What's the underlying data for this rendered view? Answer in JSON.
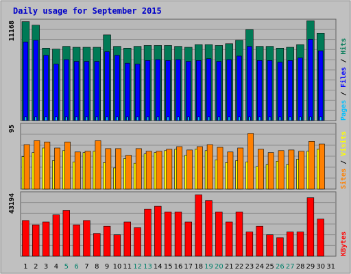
{
  "chart_data": [
    {
      "type": "bar",
      "title": "Daily usage for September 2015",
      "ymax_label": "11168",
      "right_label": [
        "Pages",
        "Files",
        "Hits"
      ],
      "right_label_separators": [
        " / ",
        " / "
      ],
      "categories": [
        "1",
        "2",
        "3",
        "4",
        "5",
        "6",
        "7",
        "8",
        "9",
        "10",
        "11",
        "12",
        "13",
        "14",
        "15",
        "16",
        "17",
        "18",
        "19",
        "20",
        "21",
        "22",
        "23",
        "24",
        "25",
        "26",
        "27",
        "28",
        "29",
        "30",
        "31"
      ],
      "weekend_days": [
        "5",
        "6",
        "12",
        "13",
        "19",
        "20",
        "26",
        "27"
      ],
      "ylim": [
        0,
        11168
      ],
      "series": [
        {
          "name": "Hits",
          "values": [
            11200,
            10800,
            8200,
            8100,
            8400,
            8300,
            8300,
            8300,
            9700,
            8400,
            8200,
            8400,
            8500,
            8500,
            8500,
            8400,
            8300,
            8600,
            8600,
            8500,
            8700,
            9100,
            10300,
            8400,
            8400,
            8200,
            8300,
            8600,
            11300,
            9900,
            0
          ]
        },
        {
          "name": "Files",
          "values": [
            8900,
            9100,
            7400,
            6400,
            6900,
            6700,
            6700,
            6700,
            7800,
            7400,
            6500,
            6400,
            6800,
            6900,
            6800,
            6900,
            6700,
            6800,
            7000,
            6700,
            6900,
            7300,
            8400,
            6800,
            6800,
            6600,
            6800,
            7100,
            9200,
            7900,
            0
          ]
        },
        {
          "name": "Pages",
          "values": [
            400,
            400,
            400,
            400,
            400,
            400,
            400,
            400,
            400,
            400,
            400,
            400,
            400,
            400,
            400,
            400,
            400,
            400,
            400,
            400,
            400,
            400,
            400,
            400,
            400,
            400,
            400,
            400,
            400,
            400,
            0
          ]
        }
      ]
    },
    {
      "type": "bar",
      "ymax_label": "95",
      "right_label": [
        "Sites",
        "Visits"
      ],
      "right_label_separators": [
        " / "
      ],
      "ylim": [
        0,
        95
      ],
      "series": [
        {
          "name": "Visits",
          "values": [
            49,
            55,
            62,
            43,
            58,
            41,
            55,
            57,
            40,
            32,
            46,
            39,
            53,
            55,
            58,
            60,
            51,
            60,
            58,
            44,
            40,
            43,
            41,
            34,
            37,
            42,
            37,
            45,
            57,
            60,
            0
          ]
        },
        {
          "name": "Sites",
          "values": [
            67,
            73,
            71,
            62,
            71,
            56,
            57,
            73,
            61,
            61,
            51,
            61,
            57,
            57,
            60,
            64,
            59,
            64,
            67,
            63,
            56,
            62,
            84,
            60,
            55,
            58,
            59,
            57,
            72,
            68,
            0
          ]
        }
      ]
    },
    {
      "type": "bar",
      "ymax_label": "43194",
      "right_label": [
        "KBytes"
      ],
      "right_label_separators": [],
      "ylim": [
        0,
        43194
      ],
      "series": [
        {
          "name": "KBytes",
          "values": [
            25000,
            22000,
            24000,
            29000,
            32000,
            22000,
            25000,
            16000,
            21000,
            15000,
            24000,
            20000,
            33000,
            35000,
            31000,
            31000,
            24000,
            43000,
            39000,
            31000,
            24000,
            31000,
            17000,
            21000,
            15000,
            13000,
            17000,
            17000,
            41000,
            26000,
            0
          ]
        }
      ]
    }
  ],
  "colors": {
    "background": "#ffffff",
    "frame": "#c0c0c0",
    "plot_bg": "#b8b8b8",
    "grid": "#8c8c8c",
    "title": "#0000c8",
    "day_weekday": "#000000",
    "day_weekend": "#00806a",
    "hits": "#007a56",
    "files": "#0000ff",
    "pages": "#00bfff",
    "visits": "#ffff00",
    "sites": "#ff8000",
    "kbytes": "#ff0000"
  }
}
